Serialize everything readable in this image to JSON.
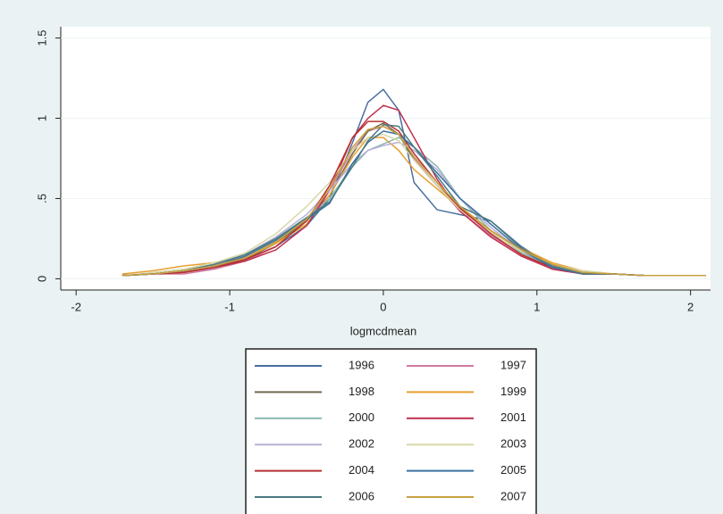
{
  "chart_data": {
    "type": "line",
    "x_label": "logmcdmean",
    "x": [
      -1.7,
      -1.5,
      -1.3,
      -1.1,
      -0.9,
      -0.7,
      -0.5,
      -0.35,
      -0.2,
      -0.1,
      0,
      0.1,
      0.2,
      0.35,
      0.5,
      0.7,
      0.9,
      1.1,
      1.3,
      1.5,
      1.7,
      1.9,
      2.1
    ],
    "xlim": [
      -2.1,
      2.13
    ],
    "xticks": [
      -2,
      -1,
      0,
      1,
      2
    ],
    "ylim": [
      -0.07,
      1.57
    ],
    "yticks": [
      0,
      {
        "value": 0.5,
        "label": ".5"
      },
      1,
      1.5
    ],
    "grid": true,
    "series": [
      {
        "name": "1996",
        "color": "#4a6fa0",
        "values": [
          0.02,
          0.03,
          0.04,
          0.07,
          0.12,
          0.2,
          0.33,
          0.5,
          0.85,
          1.1,
          1.18,
          1.05,
          0.6,
          0.43,
          0.4,
          0.36,
          0.2,
          0.08,
          0.04,
          0.03,
          0.02,
          0.02,
          0.02
        ]
      },
      {
        "name": "1997",
        "color": "#d07aa0",
        "values": [
          0.02,
          0.03,
          0.03,
          0.06,
          0.11,
          0.2,
          0.36,
          0.55,
          0.8,
          0.92,
          0.95,
          0.9,
          0.75,
          0.58,
          0.42,
          0.27,
          0.15,
          0.06,
          0.03,
          0.03,
          0.02,
          0.02,
          0.02
        ]
      },
      {
        "name": "1998",
        "color": "#706a50",
        "values": [
          0.02,
          0.03,
          0.05,
          0.08,
          0.12,
          0.22,
          0.36,
          0.52,
          0.78,
          0.92,
          0.97,
          0.9,
          0.74,
          0.58,
          0.44,
          0.3,
          0.17,
          0.07,
          0.03,
          0.03,
          0.02,
          0.02,
          0.02
        ]
      },
      {
        "name": "1999",
        "color": "#e8a030",
        "values": [
          0.03,
          0.05,
          0.08,
          0.1,
          0.13,
          0.22,
          0.34,
          0.52,
          0.76,
          0.88,
          0.88,
          0.8,
          0.68,
          0.56,
          0.44,
          0.3,
          0.19,
          0.1,
          0.05,
          0.03,
          0.02,
          0.02,
          0.02
        ]
      },
      {
        "name": "2000",
        "color": "#8ab8b0",
        "values": [
          0.02,
          0.03,
          0.05,
          0.09,
          0.15,
          0.25,
          0.38,
          0.5,
          0.7,
          0.8,
          0.84,
          0.88,
          0.82,
          0.7,
          0.5,
          0.3,
          0.16,
          0.07,
          0.03,
          0.03,
          0.02,
          0.02,
          0.02
        ]
      },
      {
        "name": "2001",
        "color": "#c03050",
        "values": [
          0.02,
          0.03,
          0.04,
          0.07,
          0.11,
          0.18,
          0.33,
          0.55,
          0.88,
          1.0,
          1.08,
          1.05,
          0.88,
          0.62,
          0.42,
          0.26,
          0.14,
          0.06,
          0.03,
          0.03,
          0.02,
          0.02,
          0.02
        ]
      },
      {
        "name": "2002",
        "color": "#b8b0d8",
        "values": [
          0.02,
          0.03,
          0.05,
          0.09,
          0.15,
          0.26,
          0.4,
          0.55,
          0.72,
          0.8,
          0.83,
          0.85,
          0.8,
          0.68,
          0.5,
          0.32,
          0.17,
          0.08,
          0.04,
          0.03,
          0.02,
          0.02,
          0.02
        ]
      },
      {
        "name": "2003",
        "color": "#d8d8a8",
        "values": [
          0.02,
          0.04,
          0.06,
          0.1,
          0.16,
          0.28,
          0.45,
          0.6,
          0.8,
          0.88,
          0.9,
          0.86,
          0.74,
          0.58,
          0.43,
          0.29,
          0.17,
          0.09,
          0.05,
          0.03,
          0.02,
          0.02,
          0.02
        ]
      },
      {
        "name": "2004",
        "color": "#b83030",
        "values": [
          0.02,
          0.03,
          0.04,
          0.07,
          0.12,
          0.2,
          0.36,
          0.58,
          0.88,
          0.98,
          0.98,
          0.92,
          0.78,
          0.6,
          0.44,
          0.28,
          0.15,
          0.07,
          0.03,
          0.03,
          0.02,
          0.02,
          0.02
        ]
      },
      {
        "name": "2005",
        "color": "#3a70a0",
        "values": [
          0.02,
          0.03,
          0.05,
          0.08,
          0.14,
          0.24,
          0.37,
          0.47,
          0.72,
          0.85,
          0.92,
          0.9,
          0.82,
          0.66,
          0.5,
          0.34,
          0.18,
          0.07,
          0.03,
          0.03,
          0.02,
          0.02,
          0.02
        ]
      },
      {
        "name": "2006",
        "color": "#4a7a80",
        "values": [
          0.02,
          0.03,
          0.05,
          0.09,
          0.15,
          0.25,
          0.38,
          0.48,
          0.7,
          0.86,
          0.96,
          0.95,
          0.82,
          0.64,
          0.45,
          0.36,
          0.19,
          0.08,
          0.03,
          0.03,
          0.02,
          0.02,
          0.02
        ]
      },
      {
        "name": "2007",
        "color": "#c8a040",
        "values": [
          0.02,
          0.03,
          0.05,
          0.08,
          0.13,
          0.23,
          0.37,
          0.56,
          0.82,
          0.93,
          0.95,
          0.9,
          0.76,
          0.6,
          0.45,
          0.3,
          0.18,
          0.09,
          0.04,
          0.03,
          0.02,
          0.02,
          0.02
        ]
      }
    ]
  }
}
